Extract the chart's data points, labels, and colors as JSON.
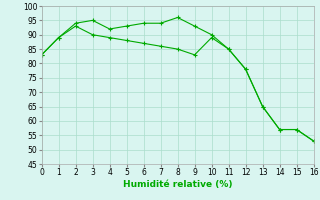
{
  "line1_x": [
    0,
    1,
    2,
    3,
    4,
    5,
    6,
    7,
    8,
    9,
    10,
    11,
    12,
    13,
    14,
    15,
    16
  ],
  "line1_y": [
    83,
    89,
    94,
    95,
    92,
    93,
    94,
    94,
    96,
    93,
    90,
    85,
    78,
    65,
    57,
    57,
    53
  ],
  "line2_x": [
    0,
    1,
    2,
    3,
    4,
    5,
    6,
    7,
    8,
    9,
    10,
    11,
    12,
    13,
    14,
    15,
    16
  ],
  "line2_y": [
    83,
    89,
    93,
    90,
    89,
    88,
    87,
    86,
    85,
    83,
    89,
    85,
    78,
    65,
    57,
    57,
    53
  ],
  "line_color": "#00aa00",
  "bg_color": "#d9f5f0",
  "grid_color": "#aaddcc",
  "xlabel": "Humidité relative (%)",
  "xlabel_color": "#00aa00",
  "xlim": [
    0,
    16
  ],
  "ylim": [
    45,
    100
  ],
  "yticks": [
    45,
    50,
    55,
    60,
    65,
    70,
    75,
    80,
    85,
    90,
    95,
    100
  ],
  "xticks": [
    0,
    1,
    2,
    3,
    4,
    5,
    6,
    7,
    8,
    9,
    10,
    11,
    12,
    13,
    14,
    15,
    16
  ]
}
